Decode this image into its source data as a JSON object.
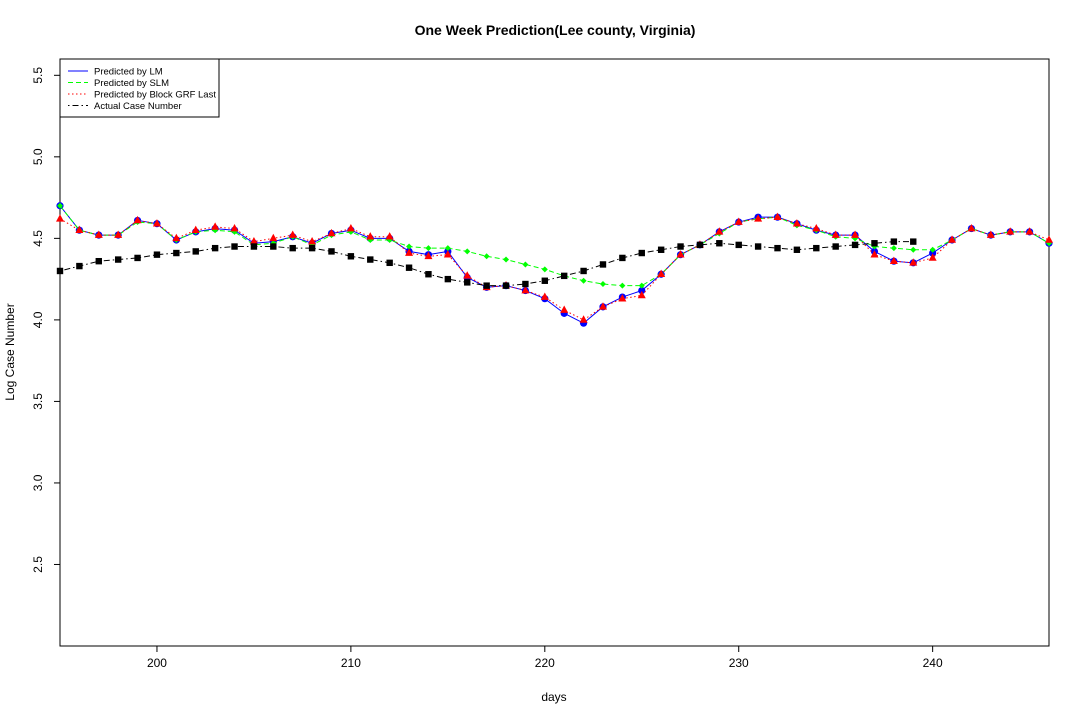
{
  "chart_data": {
    "type": "line",
    "title": "One Week Prediction(Lee county, Virginia)",
    "xlabel": "days",
    "ylabel": "Log Case Number",
    "xlim": [
      195,
      246
    ],
    "ylim": [
      2.0,
      5.6
    ],
    "x_ticks": [
      "200",
      "210",
      "220",
      "230",
      "240"
    ],
    "y_ticks": [
      "2.5",
      "3.0",
      "3.5",
      "4.0",
      "4.5",
      "5.0",
      "5.5"
    ],
    "grid": false,
    "legend_position": "top-left",
    "x": [
      195,
      196,
      197,
      198,
      199,
      200,
      201,
      202,
      203,
      204,
      205,
      206,
      207,
      208,
      209,
      210,
      211,
      212,
      213,
      214,
      215,
      216,
      217,
      218,
      219,
      220,
      221,
      222,
      223,
      224,
      225,
      226,
      227,
      228,
      229,
      230,
      231,
      232,
      233,
      234,
      235,
      236,
      237,
      238,
      239,
      240,
      241,
      242,
      243,
      244,
      245,
      246
    ],
    "series": [
      {
        "name": "Predicted by LM",
        "color": "#0000ff",
        "line_style": "solid",
        "marker": "circle",
        "values": [
          4.7,
          4.55,
          4.52,
          4.52,
          4.61,
          4.59,
          4.49,
          4.54,
          4.56,
          4.55,
          4.47,
          4.48,
          4.51,
          4.47,
          4.53,
          4.55,
          4.5,
          4.5,
          4.42,
          4.4,
          4.42,
          4.26,
          4.2,
          4.21,
          4.18,
          4.13,
          4.04,
          3.98,
          4.08,
          4.14,
          4.18,
          4.28,
          4.4,
          4.46,
          4.54,
          4.6,
          4.63,
          4.63,
          4.59,
          4.55,
          4.52,
          4.52,
          4.42,
          4.36,
          4.35,
          4.41,
          4.49,
          4.56,
          4.52,
          4.54,
          4.54,
          4.47
        ]
      },
      {
        "name": "Predicted by SLM",
        "color": "#00ff00",
        "line_style": "dashed",
        "marker": "diamond",
        "values": [
          4.7,
          4.55,
          4.52,
          4.52,
          4.6,
          4.59,
          4.49,
          4.54,
          4.55,
          4.54,
          4.46,
          4.47,
          4.51,
          4.46,
          4.52,
          4.54,
          4.49,
          4.49,
          4.45,
          4.44,
          4.44,
          4.42,
          4.39,
          4.37,
          4.34,
          4.31,
          4.27,
          4.24,
          4.22,
          4.21,
          4.21,
          4.28,
          4.4,
          4.46,
          4.53,
          4.6,
          4.62,
          4.63,
          4.58,
          4.55,
          4.51,
          4.5,
          4.45,
          4.44,
          4.43,
          4.43,
          4.49,
          4.56,
          4.52,
          4.54,
          4.54,
          4.47
        ]
      },
      {
        "name": "Predicted by Block GRF Last",
        "color": "#ff0000",
        "line_style": "dotted",
        "marker": "triangle",
        "values": [
          4.62,
          4.55,
          4.52,
          4.52,
          4.61,
          4.59,
          4.5,
          4.55,
          4.57,
          4.56,
          4.48,
          4.5,
          4.52,
          4.48,
          4.53,
          4.56,
          4.51,
          4.51,
          4.41,
          4.39,
          4.4,
          4.27,
          4.2,
          4.21,
          4.18,
          4.14,
          4.06,
          4.0,
          4.08,
          4.13,
          4.15,
          4.28,
          4.4,
          4.46,
          4.54,
          4.6,
          4.62,
          4.63,
          4.59,
          4.56,
          4.52,
          4.52,
          4.4,
          4.36,
          4.35,
          4.38,
          4.49,
          4.56,
          4.52,
          4.54,
          4.54,
          4.49
        ]
      },
      {
        "name": "Actual Case Number",
        "color": "#000000",
        "line_style": "dotdash",
        "marker": "square",
        "values": [
          4.3,
          4.33,
          4.36,
          4.37,
          4.38,
          4.4,
          4.41,
          4.42,
          4.44,
          4.45,
          4.45,
          4.45,
          4.44,
          4.44,
          4.42,
          4.39,
          4.37,
          4.35,
          4.32,
          4.28,
          4.25,
          4.23,
          4.21,
          4.21,
          4.22,
          4.24,
          4.27,
          4.3,
          4.34,
          4.38,
          4.41,
          4.43,
          4.45,
          4.46,
          4.47,
          4.46,
          4.45,
          4.44,
          4.43,
          4.44,
          4.45,
          4.46,
          4.47,
          4.48,
          4.48,
          null,
          null,
          null,
          null,
          null,
          null,
          null
        ]
      }
    ]
  }
}
